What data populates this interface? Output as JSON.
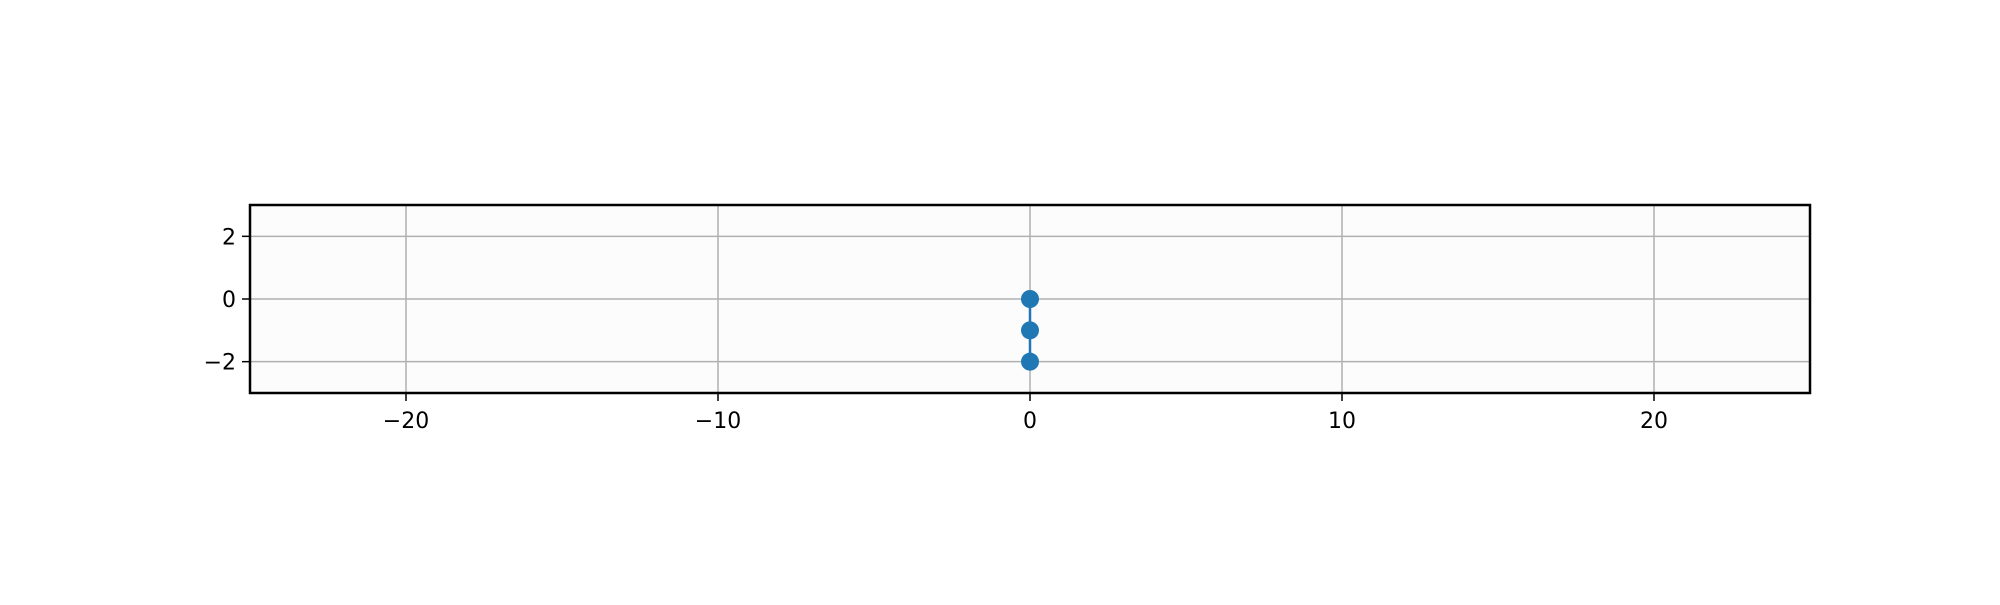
{
  "chart_data": {
    "type": "line",
    "title": "",
    "xlabel": "",
    "ylabel": "",
    "xlim": [
      -25,
      25
    ],
    "ylim": [
      -3,
      3
    ],
    "xticks": [
      -20,
      -10,
      0,
      10,
      20
    ],
    "yticks": [
      -2,
      0,
      2
    ],
    "xtick_labels": [
      "−20",
      "−10",
      "0",
      "10",
      "20"
    ],
    "ytick_labels": [
      "−2",
      "0",
      "2"
    ],
    "grid": true,
    "legend": "none",
    "series": [
      {
        "x": [
          0,
          0,
          0
        ],
        "y": [
          0,
          -1,
          -2
        ],
        "color": "#1f77b4",
        "marker": "circle"
      }
    ],
    "colors": {
      "axes_background": "#fcfcfc",
      "grid": "#b0b0b0",
      "frame": "#000000"
    }
  }
}
